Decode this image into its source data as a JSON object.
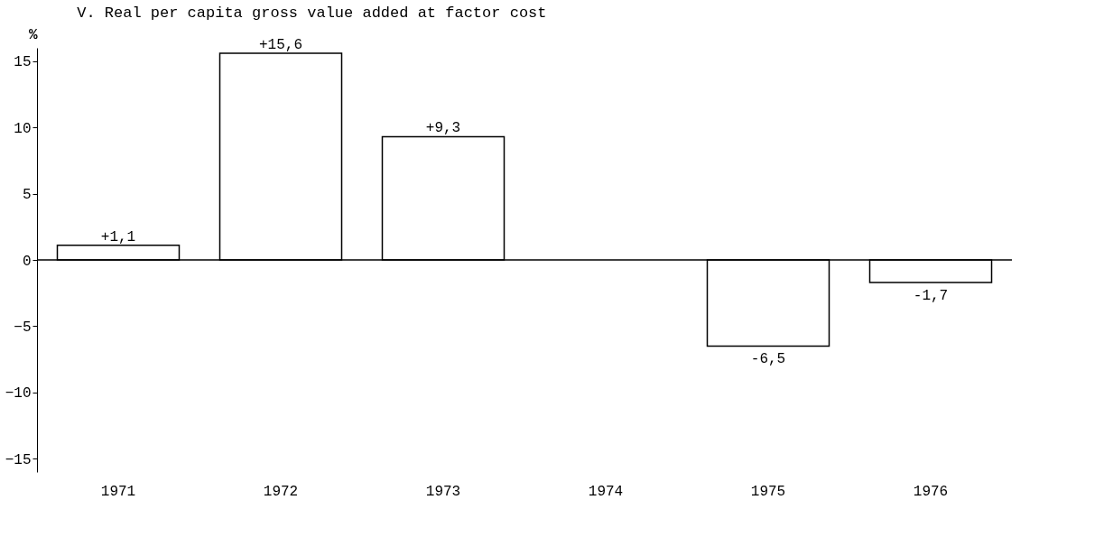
{
  "chart_data": {
    "type": "bar",
    "title": "V. Real per capita gross value added at factor cost",
    "ylabel": "%",
    "categories": [
      "1971",
      "1972",
      "1973",
      "1974",
      "1975",
      "1976"
    ],
    "values": [
      1.1,
      15.6,
      9.3,
      null,
      -6.5,
      -1.7
    ],
    "value_labels": [
      "+1,1",
      "+15,6",
      "+9,3",
      null,
      "-6,5",
      "-1,7"
    ],
    "color": "#ffffff",
    "ylim": [
      -16,
      16
    ],
    "yticks": [
      -15,
      -10,
      -5,
      0,
      5,
      10,
      15
    ],
    "ref_lines": [
      {
        "axis": "y",
        "value": 0
      }
    ],
    "grid": false
  }
}
